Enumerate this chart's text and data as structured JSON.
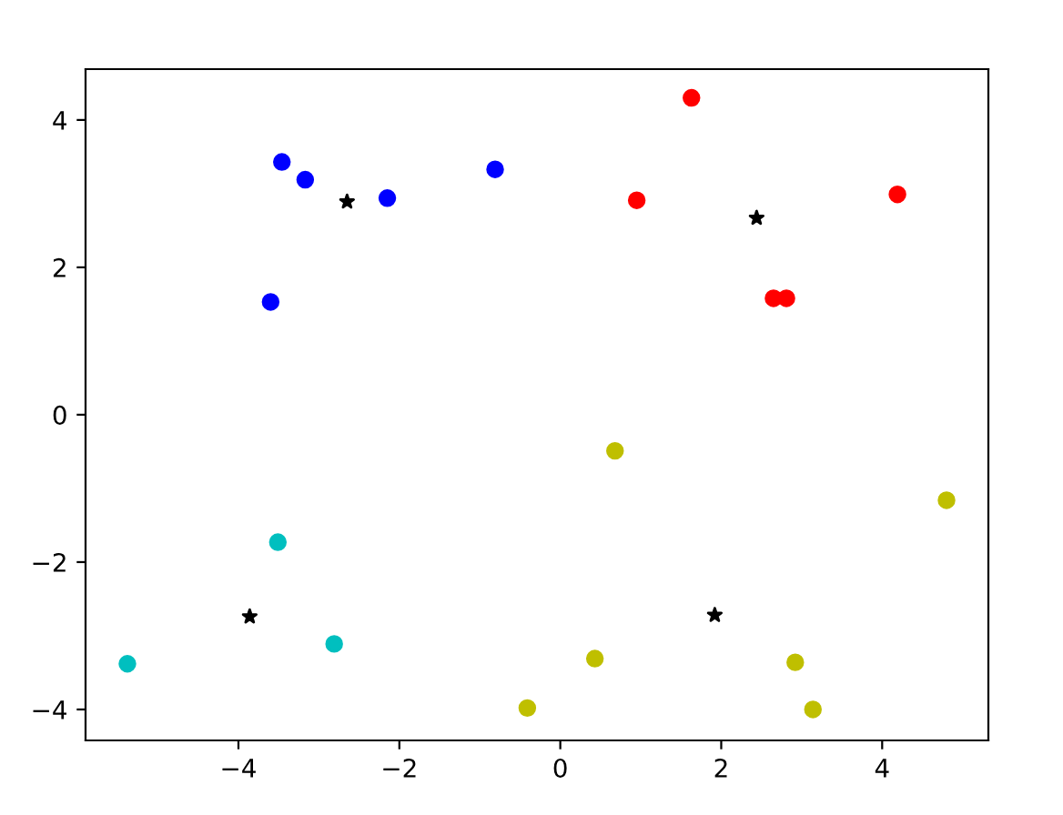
{
  "chart_data": {
    "type": "scatter",
    "xlim": [
      -5.9,
      5.32
    ],
    "ylim": [
      -4.42,
      4.69
    ],
    "xticks": [
      {
        "value": -4,
        "label": "−4"
      },
      {
        "value": -2,
        "label": "−2"
      },
      0,
      2,
      4
    ],
    "yticks": [
      {
        "value": -4,
        "label": "−4"
      },
      {
        "value": -2,
        "label": "−2"
      },
      0,
      2,
      4
    ],
    "grid": false,
    "marker": "circle",
    "series": [
      {
        "color": "#0000ff",
        "x": [
          -3.46,
          -3.17,
          -3.6,
          -2.15,
          -0.81
        ],
        "values": [
          3.43,
          3.19,
          1.53,
          2.94,
          3.33
        ]
      },
      {
        "color": "#ff0000",
        "x": [
          1.63,
          0.95,
          2.65,
          2.81,
          4.19
        ],
        "values": [
          4.3,
          2.91,
          1.58,
          1.58,
          2.99
        ]
      },
      {
        "color": "#00bfbf",
        "x": [
          -5.38,
          -3.51,
          -2.81
        ],
        "values": [
          -3.38,
          -1.73,
          -3.11
        ]
      },
      {
        "color": "#bfbf00",
        "x": [
          0.68,
          4.8,
          -0.41,
          0.43,
          2.92,
          3.14
        ],
        "values": [
          -0.49,
          -1.16,
          -3.98,
          -3.31,
          -3.36,
          -4.0
        ]
      },
      {
        "color": "#000000",
        "marker": "star",
        "x": [
          -2.65,
          2.44,
          -3.86,
          1.92
        ],
        "values": [
          2.89,
          2.67,
          -2.74,
          -2.72
        ]
      }
    ]
  }
}
